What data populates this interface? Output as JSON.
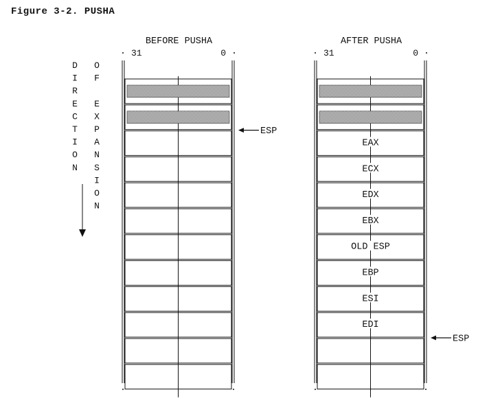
{
  "figure": {
    "title": "Figure 3-2.  PUSHA"
  },
  "direction_label": {
    "col1": [
      "D",
      "I",
      "R",
      "E",
      "C",
      "T",
      "I",
      "O",
      "N"
    ],
    "col2": [
      "O",
      "F",
      "",
      "E",
      "X",
      "P",
      "A",
      "N",
      "S",
      "I",
      "O",
      "N"
    ]
  },
  "stacks": [
    {
      "heading": "BEFORE PUSHA",
      "bit_high": "31",
      "bit_low": "0",
      "filled_rows": 2,
      "slots": [
        "",
        "",
        "",
        "",
        "",
        "",
        "",
        "",
        "",
        ""
      ],
      "esp_label": "ESP",
      "esp_row": 2
    },
    {
      "heading": "AFTER PUSHA",
      "bit_high": "31",
      "bit_low": "0",
      "filled_rows": 2,
      "slots": [
        "EAX",
        "ECX",
        "EDX",
        "EBX",
        "OLD ESP",
        "EBP",
        "ESI",
        "EDI",
        "",
        ""
      ],
      "esp_label": "ESP",
      "esp_row": 10
    }
  ],
  "colors": {
    "line": "#111111",
    "shade": "#9a9a9a"
  }
}
